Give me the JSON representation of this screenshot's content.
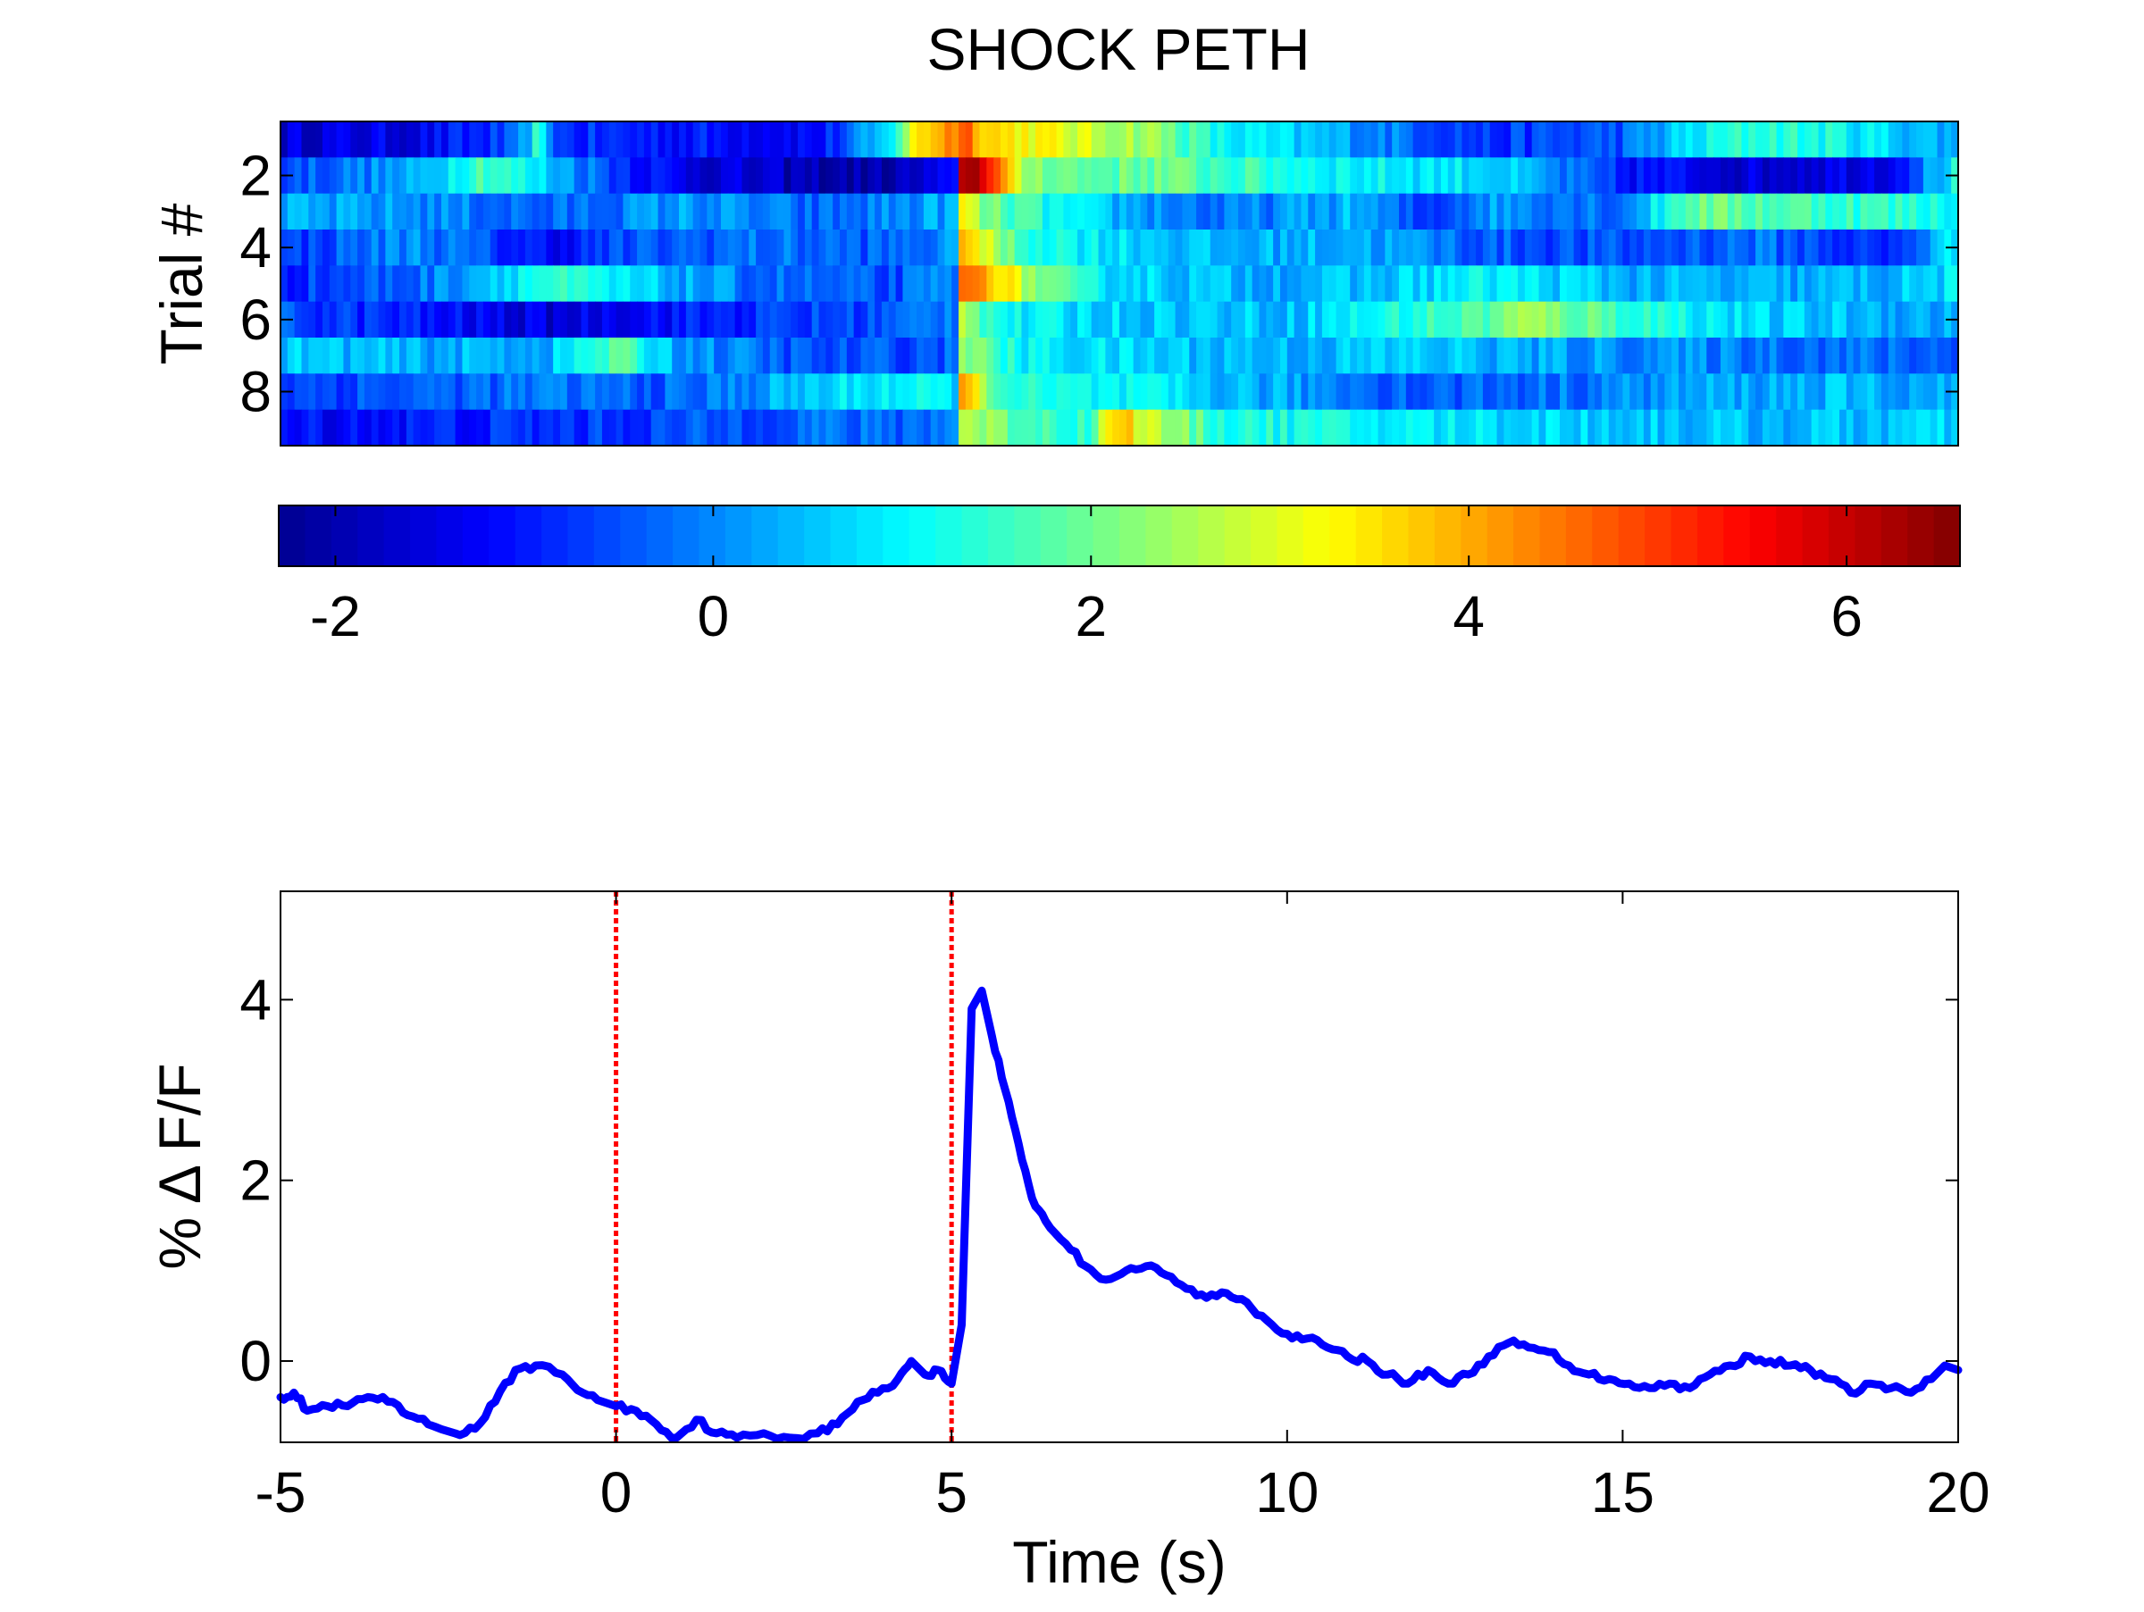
{
  "title": "SHOCK PETH",
  "colormap": [
    "#00008f",
    "#0000ff",
    "#00ffff",
    "#ffff00",
    "#ff0000",
    "#800000"
  ],
  "chart_data": [
    {
      "type": "heatmap",
      "title": "SHOCK PETH",
      "ylabel": "Trial #",
      "rows": 9,
      "ytick_labels": [
        "2",
        "4",
        "6",
        "8"
      ],
      "ytick_values": [
        2,
        4,
        6,
        8
      ],
      "xlim": [
        -5,
        20
      ],
      "color_limits": [
        -2.3,
        6.6
      ],
      "colorbar_tick_labels": [
        "-2",
        "0",
        "2",
        "4",
        "6"
      ],
      "colorbar_tick_values": [
        -2,
        0,
        2,
        4,
        6
      ],
      "row_profiles": [
        [
          [
            -5,
            -1.6
          ],
          [
            -3,
            -1.4
          ],
          [
            -1.5,
            -0.6
          ],
          [
            -1.2,
            1.2
          ],
          [
            -0.8,
            -0.8
          ],
          [
            1,
            -1.0
          ],
          [
            3,
            -1.2
          ],
          [
            4,
            0.5
          ],
          [
            4.5,
            3.5
          ],
          [
            5.2,
            4.8
          ],
          [
            5.6,
            3.6
          ],
          [
            7,
            2.8
          ],
          [
            8,
            2.4
          ],
          [
            9,
            1.0
          ],
          [
            11,
            0.2
          ],
          [
            13,
            -0.8
          ],
          [
            15,
            -0.4
          ],
          [
            16,
            0.8
          ],
          [
            17,
            1.5
          ],
          [
            18,
            1.2
          ],
          [
            20,
            0.2
          ]
        ],
        [
          [
            -5,
            -0.5
          ],
          [
            -3,
            0.2
          ],
          [
            -2,
            1.8
          ],
          [
            -1,
            0.6
          ],
          [
            0,
            -0.6
          ],
          [
            1,
            -1.4
          ],
          [
            3,
            -2.0
          ],
          [
            4,
            -2.1
          ],
          [
            5,
            -1.4
          ],
          [
            5.1,
            6.5
          ],
          [
            5.5,
            6.0
          ],
          [
            6,
            2.5
          ],
          [
            7,
            1.8
          ],
          [
            8,
            2.0
          ],
          [
            9,
            1.6
          ],
          [
            11,
            1.0
          ],
          [
            13,
            0.8
          ],
          [
            15,
            -1.0
          ],
          [
            17,
            -1.6
          ],
          [
            19,
            -1.2
          ],
          [
            20,
            1.2
          ]
        ],
        [
          [
            -5,
            0.2
          ],
          [
            -3,
            0.1
          ],
          [
            -1,
            -0.4
          ],
          [
            1,
            0.2
          ],
          [
            3,
            -0.4
          ],
          [
            5,
            0.3
          ],
          [
            5.1,
            3.5
          ],
          [
            5.5,
            2.0
          ],
          [
            6,
            1.6
          ],
          [
            7,
            0.6
          ],
          [
            9,
            -0.3
          ],
          [
            11,
            0.4
          ],
          [
            12,
            -0.8
          ],
          [
            13,
            0.2
          ],
          [
            15,
            -0.2
          ],
          [
            16,
            2.0
          ],
          [
            18,
            1.6
          ],
          [
            20,
            1.2
          ]
        ],
        [
          [
            -5,
            -0.8
          ],
          [
            -3,
            0.1
          ],
          [
            -1,
            -1.2
          ],
          [
            0,
            -0.6
          ],
          [
            2,
            -0.2
          ],
          [
            4,
            -0.4
          ],
          [
            5,
            0.0
          ],
          [
            5.1,
            4.6
          ],
          [
            5.5,
            2.8
          ],
          [
            6,
            1.6
          ],
          [
            7,
            1.0
          ],
          [
            9,
            0.3
          ],
          [
            11,
            0.4
          ],
          [
            13,
            -0.4
          ],
          [
            15,
            -0.6
          ],
          [
            17,
            -0.2
          ],
          [
            19,
            -1.0
          ],
          [
            20,
            1.0
          ]
        ],
        [
          [
            -5,
            -0.8
          ],
          [
            -3,
            -0.3
          ],
          [
            -1,
            1.4
          ],
          [
            0,
            0.8
          ],
          [
            2,
            -0.2
          ],
          [
            4,
            -0.6
          ],
          [
            5,
            0.0
          ],
          [
            5.1,
            4.2
          ],
          [
            5.5,
            4.4
          ],
          [
            6,
            2.8
          ],
          [
            6.5,
            1.8
          ],
          [
            7,
            1.0
          ],
          [
            9,
            0.4
          ],
          [
            11,
            0.4
          ],
          [
            13,
            1.0
          ],
          [
            15,
            0.4
          ],
          [
            17,
            0.2
          ],
          [
            19,
            0.4
          ],
          [
            20,
            0.8
          ]
        ],
        [
          [
            -5,
            -0.5
          ],
          [
            -3,
            -1.0
          ],
          [
            -1,
            -1.6
          ],
          [
            0,
            -1.2
          ],
          [
            2,
            -0.8
          ],
          [
            4,
            -0.5
          ],
          [
            5,
            0.0
          ],
          [
            5.1,
            3.2
          ],
          [
            5.5,
            1.6
          ],
          [
            6,
            0.9
          ],
          [
            8,
            0.6
          ],
          [
            10,
            0.5
          ],
          [
            12,
            1.4
          ],
          [
            13,
            1.8
          ],
          [
            13.5,
            2.4
          ],
          [
            15,
            1.6
          ],
          [
            17,
            0.6
          ],
          [
            19,
            0.4
          ],
          [
            20,
            0.2
          ]
        ],
        [
          [
            -5,
            0.6
          ],
          [
            -3,
            0.3
          ],
          [
            -1,
            0.4
          ],
          [
            0,
            1.8
          ],
          [
            1,
            0.2
          ],
          [
            3,
            -0.6
          ],
          [
            5,
            -0.4
          ],
          [
            5.1,
            2.8
          ],
          [
            5.5,
            1.8
          ],
          [
            6,
            1.0
          ],
          [
            8,
            0.6
          ],
          [
            10,
            0.4
          ],
          [
            12,
            0.6
          ],
          [
            14,
            0.2
          ],
          [
            16,
            0.0
          ],
          [
            18,
            -0.2
          ],
          [
            20,
            -0.4
          ]
        ],
        [
          [
            -5,
            -0.6
          ],
          [
            -3,
            -0.4
          ],
          [
            -1,
            -0.2
          ],
          [
            1,
            -0.4
          ],
          [
            3,
            0.6
          ],
          [
            4,
            1.0
          ],
          [
            5,
            0.8
          ],
          [
            5.1,
            4.4
          ],
          [
            5.5,
            2.4
          ],
          [
            6,
            1.2
          ],
          [
            8,
            0.8
          ],
          [
            10,
            0.2
          ],
          [
            12,
            -0.4
          ],
          [
            14,
            -0.2
          ],
          [
            16,
            0.2
          ],
          [
            18,
            0.4
          ],
          [
            20,
            0.2
          ]
        ],
        [
          [
            -5,
            -1.2
          ],
          [
            -3,
            -1.0
          ],
          [
            -1,
            -0.8
          ],
          [
            1,
            -0.6
          ],
          [
            3,
            -0.2
          ],
          [
            4,
            -0.4
          ],
          [
            5,
            0.0
          ],
          [
            5.1,
            2.8
          ],
          [
            6,
            1.8
          ],
          [
            7,
            1.4
          ],
          [
            7.5,
            4.0
          ],
          [
            8,
            2.6
          ],
          [
            9,
            1.4
          ],
          [
            11,
            1.0
          ],
          [
            13,
            0.8
          ],
          [
            15,
            0.6
          ],
          [
            17,
            0.4
          ],
          [
            20,
            0.6
          ]
        ]
      ]
    },
    {
      "type": "line",
      "xlabel": "Time (s)",
      "ylabel": "% Δ F/F",
      "xlim": [
        -5,
        20
      ],
      "ylim": [
        -0.9,
        5.2
      ],
      "xtick_labels": [
        "-5",
        "0",
        "5",
        "10",
        "15",
        "20"
      ],
      "xtick_values": [
        -5,
        0,
        5,
        10,
        15,
        20
      ],
      "ytick_labels": [
        "0",
        "2",
        "4"
      ],
      "ytick_values": [
        0,
        2,
        4
      ],
      "series": [
        {
          "color": "#0000ff",
          "points": [
            [
              -5,
              -0.4
            ],
            [
              -4.8,
              -0.35
            ],
            [
              -4.6,
              -0.55
            ],
            [
              -4.3,
              -0.5
            ],
            [
              -4,
              -0.5
            ],
            [
              -3.7,
              -0.4
            ],
            [
              -3.4,
              -0.45
            ],
            [
              -3.1,
              -0.6
            ],
            [
              -2.8,
              -0.7
            ],
            [
              -2.4,
              -0.8
            ],
            [
              -2.1,
              -0.75
            ],
            [
              -1.8,
              -0.45
            ],
            [
              -1.5,
              -0.1
            ],
            [
              -1.2,
              -0.05
            ],
            [
              -0.8,
              -0.15
            ],
            [
              -0.5,
              -0.35
            ],
            [
              -0.2,
              -0.45
            ],
            [
              0,
              -0.5
            ],
            [
              0.3,
              -0.55
            ],
            [
              0.6,
              -0.7
            ],
            [
              0.9,
              -0.85
            ],
            [
              1.2,
              -0.65
            ],
            [
              1.5,
              -0.8
            ],
            [
              1.8,
              -0.85
            ],
            [
              2.2,
              -0.8
            ],
            [
              2.6,
              -0.85
            ],
            [
              3,
              -0.8
            ],
            [
              3.3,
              -0.7
            ],
            [
              3.6,
              -0.45
            ],
            [
              3.9,
              -0.35
            ],
            [
              4.2,
              -0.2
            ],
            [
              4.4,
              0.0
            ],
            [
              4.6,
              -0.15
            ],
            [
              4.8,
              -0.1
            ],
            [
              5.0,
              -0.25
            ],
            [
              5.15,
              0.4
            ],
            [
              5.3,
              3.9
            ],
            [
              5.45,
              4.1
            ],
            [
              5.6,
              3.6
            ],
            [
              5.8,
              3.0
            ],
            [
              6.0,
              2.4
            ],
            [
              6.2,
              1.8
            ],
            [
              6.4,
              1.55
            ],
            [
              6.7,
              1.3
            ],
            [
              7.0,
              1.05
            ],
            [
              7.3,
              0.9
            ],
            [
              7.6,
              1.0
            ],
            [
              7.9,
              1.05
            ],
            [
              8.2,
              0.95
            ],
            [
              8.5,
              0.8
            ],
            [
              8.8,
              0.7
            ],
            [
              9.1,
              0.75
            ],
            [
              9.4,
              0.65
            ],
            [
              9.7,
              0.45
            ],
            [
              10,
              0.3
            ],
            [
              10.3,
              0.25
            ],
            [
              10.6,
              0.15
            ],
            [
              10.9,
              0.05
            ],
            [
              11.2,
              0.0
            ],
            [
              11.5,
              -0.15
            ],
            [
              11.8,
              -0.25
            ],
            [
              12.1,
              -0.1
            ],
            [
              12.4,
              -0.25
            ],
            [
              12.7,
              -0.15
            ],
            [
              13,
              0.05
            ],
            [
              13.3,
              0.2
            ],
            [
              13.6,
              0.15
            ],
            [
              13.9,
              0.1
            ],
            [
              14.2,
              -0.05
            ],
            [
              14.5,
              -0.15
            ],
            [
              14.8,
              -0.2
            ],
            [
              15.1,
              -0.25
            ],
            [
              15.4,
              -0.3
            ],
            [
              15.7,
              -0.25
            ],
            [
              16,
              -0.3
            ],
            [
              16.3,
              -0.15
            ],
            [
              16.6,
              -0.05
            ],
            [
              16.9,
              0.05
            ],
            [
              17.2,
              0.0
            ],
            [
              17.5,
              -0.05
            ],
            [
              17.8,
              -0.1
            ],
            [
              18.1,
              -0.2
            ],
            [
              18.4,
              -0.35
            ],
            [
              18.7,
              -0.25
            ],
            [
              19,
              -0.3
            ],
            [
              19.3,
              -0.35
            ],
            [
              19.6,
              -0.2
            ],
            [
              19.8,
              -0.05
            ],
            [
              20,
              -0.1
            ]
          ]
        }
      ],
      "event_lines": [
        {
          "x": 0,
          "color": "#ff0000",
          "style": "dotted"
        },
        {
          "x": 5,
          "color": "#ff0000",
          "style": "dotted"
        }
      ]
    }
  ]
}
